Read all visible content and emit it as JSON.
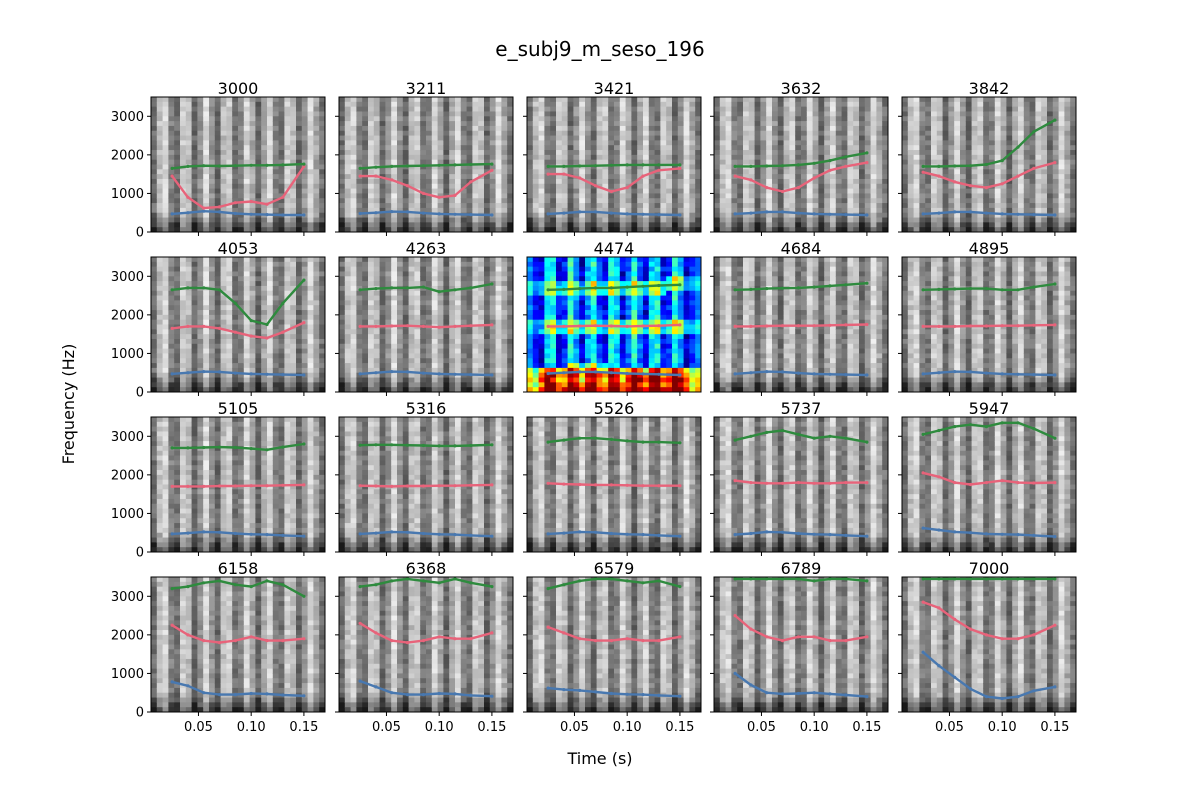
{
  "chart_data": {
    "type": "grid-of-spectrograms",
    "suptitle": "e_subj9_m_seso_196",
    "xlabel": "Time (s)",
    "ylabel": "Frequency (Hz)",
    "xlim": [
      0.005,
      0.17
    ],
    "ylim": [
      0,
      3500
    ],
    "xticks": [
      0.05,
      0.1,
      0.15
    ],
    "xtick_labels": [
      "0.05",
      "0.10",
      "0.15"
    ],
    "yticks": [
      0,
      1000,
      2000,
      3000
    ],
    "ytick_labels": [
      "0",
      "1000",
      "2000",
      "3000"
    ],
    "grid": false,
    "rows": 4,
    "cols": 5,
    "highlighted_panel": "4474",
    "colors": {
      "F1": "#4878b0",
      "F2": "#e8637a",
      "F3": "#2e8b3e",
      "highlight_colormap": "jet",
      "default_colormap": "gray"
    },
    "time": [
      0.025,
      0.04,
      0.055,
      0.07,
      0.085,
      0.1,
      0.115,
      0.13,
      0.15
    ],
    "panels": [
      {
        "title": "3000",
        "F1": [
          470,
          500,
          540,
          520,
          480,
          460,
          450,
          440,
          440
        ],
        "F2": [
          1450,
          900,
          620,
          650,
          760,
          790,
          720,
          900,
          1700
        ],
        "F3": [
          1650,
          1700,
          1720,
          1710,
          1720,
          1730,
          1730,
          1740,
          1760
        ]
      },
      {
        "title": "3211",
        "F1": [
          480,
          500,
          530,
          520,
          490,
          470,
          460,
          450,
          440
        ],
        "F2": [
          1450,
          1450,
          1350,
          1200,
          1000,
          900,
          950,
          1300,
          1600
        ],
        "F3": [
          1650,
          1680,
          1700,
          1710,
          1720,
          1730,
          1740,
          1750,
          1760
        ]
      },
      {
        "title": "3421",
        "F1": [
          470,
          490,
          520,
          520,
          490,
          470,
          460,
          450,
          440
        ],
        "F2": [
          1500,
          1500,
          1400,
          1200,
          1050,
          1150,
          1450,
          1600,
          1650
        ],
        "F3": [
          1700,
          1700,
          1710,
          1720,
          1730,
          1740,
          1740,
          1740,
          1740
        ]
      },
      {
        "title": "3632",
        "F1": [
          470,
          490,
          520,
          520,
          490,
          470,
          460,
          450,
          440
        ],
        "F2": [
          1450,
          1350,
          1150,
          1050,
          1150,
          1400,
          1600,
          1700,
          1800
        ],
        "F3": [
          1700,
          1700,
          1710,
          1720,
          1740,
          1780,
          1850,
          1950,
          2050
        ]
      },
      {
        "title": "3842",
        "F1": [
          470,
          490,
          520,
          520,
          490,
          470,
          460,
          450,
          440
        ],
        "F2": [
          1550,
          1450,
          1300,
          1200,
          1150,
          1250,
          1450,
          1650,
          1800
        ],
        "F3": [
          1700,
          1700,
          1710,
          1720,
          1750,
          1850,
          2200,
          2600,
          2900
        ]
      },
      {
        "title": "4053",
        "F1": [
          470,
          500,
          530,
          520,
          490,
          470,
          460,
          450,
          440
        ],
        "F2": [
          1650,
          1700,
          1700,
          1650,
          1550,
          1450,
          1400,
          1550,
          1800
        ],
        "F3": [
          2650,
          2700,
          2700,
          2650,
          2300,
          1850,
          1750,
          2300,
          2900
        ]
      },
      {
        "title": "4263",
        "F1": [
          470,
          500,
          530,
          520,
          490,
          470,
          460,
          450,
          440
        ],
        "F2": [
          1700,
          1700,
          1710,
          1720,
          1700,
          1680,
          1700,
          1720,
          1740
        ],
        "F3": [
          2650,
          2680,
          2700,
          2700,
          2720,
          2600,
          2650,
          2700,
          2800
        ]
      },
      {
        "title": "4474",
        "F1": [
          480,
          500,
          520,
          520,
          500,
          480,
          470,
          460,
          440
        ],
        "F2": [
          1700,
          1700,
          1710,
          1720,
          1710,
          1700,
          1710,
          1720,
          1740
        ],
        "F3": [
          2650,
          2660,
          2680,
          2700,
          2700,
          2720,
          2740,
          2760,
          2780
        ]
      },
      {
        "title": "4684",
        "F1": [
          470,
          500,
          530,
          520,
          490,
          470,
          460,
          450,
          440
        ],
        "F2": [
          1700,
          1700,
          1710,
          1720,
          1720,
          1720,
          1730,
          1740,
          1750
        ],
        "F3": [
          2650,
          2660,
          2680,
          2690,
          2700,
          2720,
          2750,
          2780,
          2820
        ]
      },
      {
        "title": "4895",
        "F1": [
          470,
          500,
          530,
          520,
          490,
          470,
          460,
          450,
          440
        ],
        "F2": [
          1700,
          1700,
          1700,
          1710,
          1710,
          1720,
          1720,
          1730,
          1740
        ],
        "F3": [
          2650,
          2660,
          2670,
          2680,
          2680,
          2650,
          2650,
          2720,
          2800
        ]
      },
      {
        "title": "5105",
        "F1": [
          470,
          490,
          520,
          510,
          480,
          460,
          450,
          430,
          410
        ],
        "F2": [
          1700,
          1700,
          1700,
          1710,
          1710,
          1720,
          1720,
          1730,
          1740
        ],
        "F3": [
          2700,
          2700,
          2710,
          2720,
          2710,
          2680,
          2650,
          2720,
          2800
        ]
      },
      {
        "title": "5316",
        "F1": [
          470,
          490,
          520,
          510,
          480,
          460,
          450,
          430,
          410
        ],
        "F2": [
          1720,
          1710,
          1700,
          1710,
          1710,
          1720,
          1720,
          1730,
          1740
        ],
        "F3": [
          2770,
          2780,
          2780,
          2770,
          2760,
          2750,
          2750,
          2760,
          2780
        ]
      },
      {
        "title": "5526",
        "F1": [
          470,
          490,
          520,
          510,
          480,
          460,
          450,
          430,
          410
        ],
        "F2": [
          1780,
          1760,
          1750,
          1740,
          1740,
          1730,
          1720,
          1720,
          1720
        ],
        "F3": [
          2850,
          2900,
          2950,
          2950,
          2920,
          2880,
          2850,
          2850,
          2830
        ]
      },
      {
        "title": "5737",
        "F1": [
          450,
          480,
          520,
          510,
          480,
          460,
          450,
          430,
          410
        ],
        "F2": [
          1850,
          1800,
          1780,
          1780,
          1800,
          1780,
          1780,
          1800,
          1800
        ],
        "F3": [
          2900,
          3000,
          3100,
          3150,
          3050,
          2950,
          3000,
          2950,
          2850
        ]
      },
      {
        "title": "5947",
        "F1": [
          620,
          570,
          520,
          500,
          470,
          460,
          450,
          430,
          400
        ],
        "F2": [
          2050,
          1950,
          1800,
          1750,
          1800,
          1850,
          1800,
          1790,
          1800
        ],
        "F3": [
          3050,
          3150,
          3250,
          3300,
          3250,
          3350,
          3350,
          3200,
          2950
        ]
      },
      {
        "title": "6158",
        "F1": [
          780,
          680,
          500,
          450,
          450,
          480,
          470,
          440,
          420
        ],
        "F2": [
          2250,
          2000,
          1850,
          1800,
          1850,
          1950,
          1850,
          1850,
          1900
        ],
        "F3": [
          3200,
          3250,
          3350,
          3400,
          3300,
          3250,
          3400,
          3300,
          3000
        ]
      },
      {
        "title": "6368",
        "F1": [
          800,
          650,
          500,
          450,
          450,
          480,
          470,
          430,
          410
        ],
        "F2": [
          2300,
          2050,
          1850,
          1800,
          1850,
          1950,
          1900,
          1900,
          2050
        ],
        "F3": [
          3250,
          3300,
          3400,
          3450,
          3400,
          3350,
          3450,
          3350,
          3250
        ]
      },
      {
        "title": "6579",
        "F1": [
          620,
          580,
          560,
          520,
          480,
          460,
          450,
          430,
          410
        ],
        "F2": [
          2200,
          2050,
          1900,
          1850,
          1850,
          1900,
          1850,
          1850,
          1950
        ],
        "F3": [
          3200,
          3300,
          3400,
          3450,
          3450,
          3400,
          3350,
          3400,
          3250
        ]
      },
      {
        "title": "6789",
        "F1": [
          1000,
          700,
          500,
          470,
          480,
          500,
          470,
          440,
          400
        ],
        "F2": [
          2500,
          2150,
          1950,
          1850,
          1950,
          1950,
          1850,
          1850,
          1950
        ],
        "F3": [
          3450,
          3450,
          3450,
          3450,
          3450,
          3400,
          3450,
          3450,
          3400
        ]
      },
      {
        "title": "7000",
        "F1": [
          1550,
          1200,
          900,
          600,
          400,
          350,
          400,
          550,
          650
        ],
        "F2": [
          2850,
          2700,
          2400,
          2150,
          2000,
          1900,
          1900,
          2000,
          2250
        ],
        "F3": [
          3450,
          3450,
          3450,
          3450,
          3450,
          3450,
          3450,
          3450,
          3450
        ]
      }
    ]
  }
}
